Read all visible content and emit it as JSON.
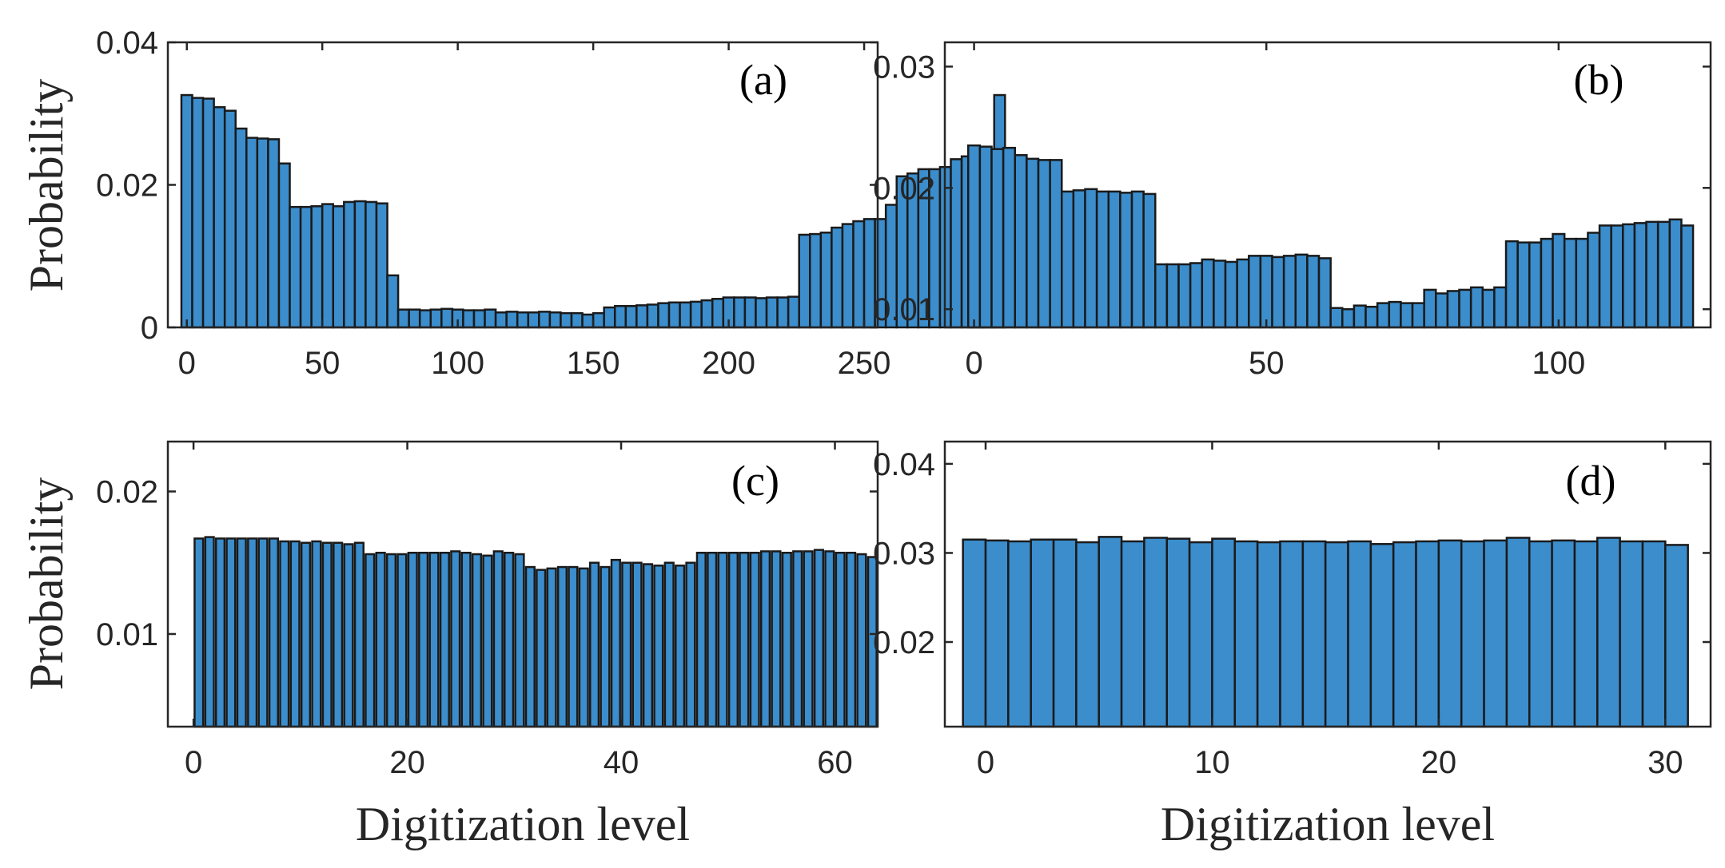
{
  "colors": {
    "bar_fill": "#3b8dcc",
    "bar_edge": "#1a1a1a",
    "axis": "#262626"
  },
  "chart_data": [
    {
      "panel_label": "(a)",
      "type": "bar",
      "title": "",
      "xlabel": "",
      "ylabel": "Probability",
      "xlim": [
        -7,
        255
      ],
      "ylim": [
        0,
        0.04
      ],
      "xticks": [
        0,
        50,
        100,
        150,
        200,
        250
      ],
      "xtick_labels": [
        "0",
        "50",
        "100",
        "150",
        "200",
        "250"
      ],
      "yticks": [
        0,
        0.02,
        0.04
      ],
      "ytick_labels": [
        "0",
        "0.02",
        "0.04"
      ],
      "bin_start": -2,
      "bin_width": 4,
      "values": [
        0.0326,
        0.0322,
        0.0321,
        0.0309,
        0.0304,
        0.0279,
        0.0266,
        0.0265,
        0.0264,
        0.023,
        0.0169,
        0.0169,
        0.017,
        0.0173,
        0.017,
        0.0176,
        0.0177,
        0.0176,
        0.0174,
        0.0073,
        0.0025,
        0.0025,
        0.0024,
        0.0025,
        0.0026,
        0.0025,
        0.0024,
        0.0024,
        0.0025,
        0.0021,
        0.0022,
        0.0021,
        0.0021,
        0.0022,
        0.0021,
        0.002,
        0.002,
        0.0018,
        0.002,
        0.0028,
        0.003,
        0.003,
        0.0031,
        0.0032,
        0.0034,
        0.0035,
        0.0035,
        0.0036,
        0.0038,
        0.004,
        0.0042,
        0.0042,
        0.0042,
        0.0041,
        0.0042,
        0.0042,
        0.0043,
        0.013,
        0.0131,
        0.0133,
        0.014,
        0.0145,
        0.0149,
        0.0152,
        0.0152,
        0.0172,
        0.0212,
        0.0216,
        0.0222,
        0.0222,
        0.0225,
        0.0236,
        0.024,
        0.0242,
        0.0244,
        0.0326
      ]
    },
    {
      "panel_label": "(b)",
      "type": "bar",
      "title": "",
      "xlabel": "",
      "ylabel": "",
      "xlim": [
        -5,
        126
      ],
      "ylim": [
        0.0085,
        0.032
      ],
      "xticks": [
        0,
        50,
        100
      ],
      "xtick_labels": [
        "0",
        "50",
        "100"
      ],
      "yticks": [
        0.01,
        0.02,
        0.03
      ],
      "ytick_labels": [
        "0.01",
        "0.02",
        "0.03"
      ],
      "bin_start": -1,
      "bin_width": 2,
      "values": [
        0.0235,
        0.0234,
        0.0232,
        0.0233,
        0.0227,
        0.0224,
        0.0223,
        0.0223,
        0.0197,
        0.0198,
        0.0199,
        0.0197,
        0.0197,
        0.0196,
        0.0197,
        0.0195,
        0.0137,
        0.0137,
        0.0137,
        0.0138,
        0.0141,
        0.014,
        0.0139,
        0.0141,
        0.0144,
        0.0144,
        0.0143,
        0.0144,
        0.0145,
        0.0144,
        0.0142,
        0.0101,
        0.01,
        0.0103,
        0.0102,
        0.0105,
        0.0106,
        0.0105,
        0.0105,
        0.0116,
        0.0113,
        0.0115,
        0.0116,
        0.0118,
        0.0116,
        0.0118,
        0.0156,
        0.0155,
        0.0155,
        0.0158,
        0.0162,
        0.0158,
        0.0158,
        0.0163,
        0.0169,
        0.0169,
        0.017,
        0.0171,
        0.0172,
        0.0172,
        0.0174,
        0.0169
      ]
    },
    {
      "panel_label": "(c)",
      "type": "bar",
      "title": "",
      "xlabel": "Digitization level",
      "ylabel": "Probability",
      "xlim": [
        -2.4,
        64
      ],
      "ylim": [
        0.0035,
        0.0235
      ],
      "xticks": [
        0,
        20,
        40,
        60
      ],
      "xtick_labels": [
        "0",
        "20",
        "40",
        "60"
      ],
      "yticks": [
        0.01,
        0.02
      ],
      "ytick_labels": [
        "0.01",
        "0.02"
      ],
      "bin_start": 0,
      "bin_width": 1,
      "bar_fraction": 0.8,
      "values": [
        0.0167,
        0.0168,
        0.0167,
        0.0167,
        0.0167,
        0.0167,
        0.0167,
        0.0167,
        0.0165,
        0.0165,
        0.0164,
        0.0165,
        0.0164,
        0.0164,
        0.0163,
        0.0164,
        0.0156,
        0.0157,
        0.0156,
        0.0156,
        0.0157,
        0.0157,
        0.0157,
        0.0157,
        0.0158,
        0.0157,
        0.0156,
        0.0155,
        0.0158,
        0.0157,
        0.0156,
        0.0147,
        0.0145,
        0.0146,
        0.0147,
        0.0147,
        0.0146,
        0.015,
        0.0147,
        0.0152,
        0.015,
        0.015,
        0.0149,
        0.0148,
        0.015,
        0.0148,
        0.015,
        0.0157,
        0.0157,
        0.0157,
        0.0157,
        0.0157,
        0.0157,
        0.0158,
        0.0158,
        0.0157,
        0.0158,
        0.0158,
        0.0159,
        0.0158,
        0.0157,
        0.0157,
        0.0156,
        0.0154
      ]
    },
    {
      "panel_label": "(d)",
      "type": "bar",
      "title": "",
      "xlabel": "Digitization level",
      "ylabel": "",
      "xlim": [
        -1.8,
        32
      ],
      "ylim": [
        0.0105,
        0.0425
      ],
      "xticks": [
        0,
        10,
        20,
        30
      ],
      "xtick_labels": [
        "0",
        "10",
        "20",
        "30"
      ],
      "yticks": [
        0.02,
        0.03,
        0.04
      ],
      "ytick_labels": [
        "0.02",
        "0.03",
        "0.04"
      ],
      "bin_start": -1,
      "bin_width": 1,
      "values": [
        0.0315,
        0.0314,
        0.0313,
        0.0315,
        0.0315,
        0.0312,
        0.0318,
        0.0313,
        0.0317,
        0.0316,
        0.0312,
        0.0316,
        0.0313,
        0.0312,
        0.0313,
        0.0313,
        0.0312,
        0.0313,
        0.031,
        0.0312,
        0.0313,
        0.0314,
        0.0313,
        0.0314,
        0.0317,
        0.0313,
        0.0314,
        0.0313,
        0.0317,
        0.0313,
        0.0313,
        0.0309
      ]
    }
  ]
}
